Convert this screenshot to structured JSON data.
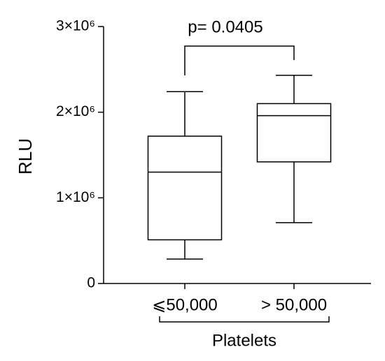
{
  "chart_data": {
    "type": "box",
    "ylabel": "RLU",
    "xlabel": "Platelets",
    "annotation": "p= 0.0405",
    "categories": [
      "⩽50,000",
      "> 50,000"
    ],
    "boxes": [
      {
        "min": 285000,
        "q1": 510000,
        "median": 1300000,
        "q3": 1720000,
        "max": 2240000
      },
      {
        "min": 710000,
        "q1": 1420000,
        "median": 1960000,
        "q3": 2100000,
        "max": 2430000
      }
    ],
    "color": "#000000",
    "ylim": [
      0,
      3000000
    ],
    "yticks": [
      0,
      {
        "value": 1000000,
        "label": "1×10⁶"
      },
      {
        "value": 2000000,
        "label": "2×10⁶"
      },
      {
        "value": 3000000,
        "label": "3×10⁶"
      }
    ],
    "grid": false
  }
}
